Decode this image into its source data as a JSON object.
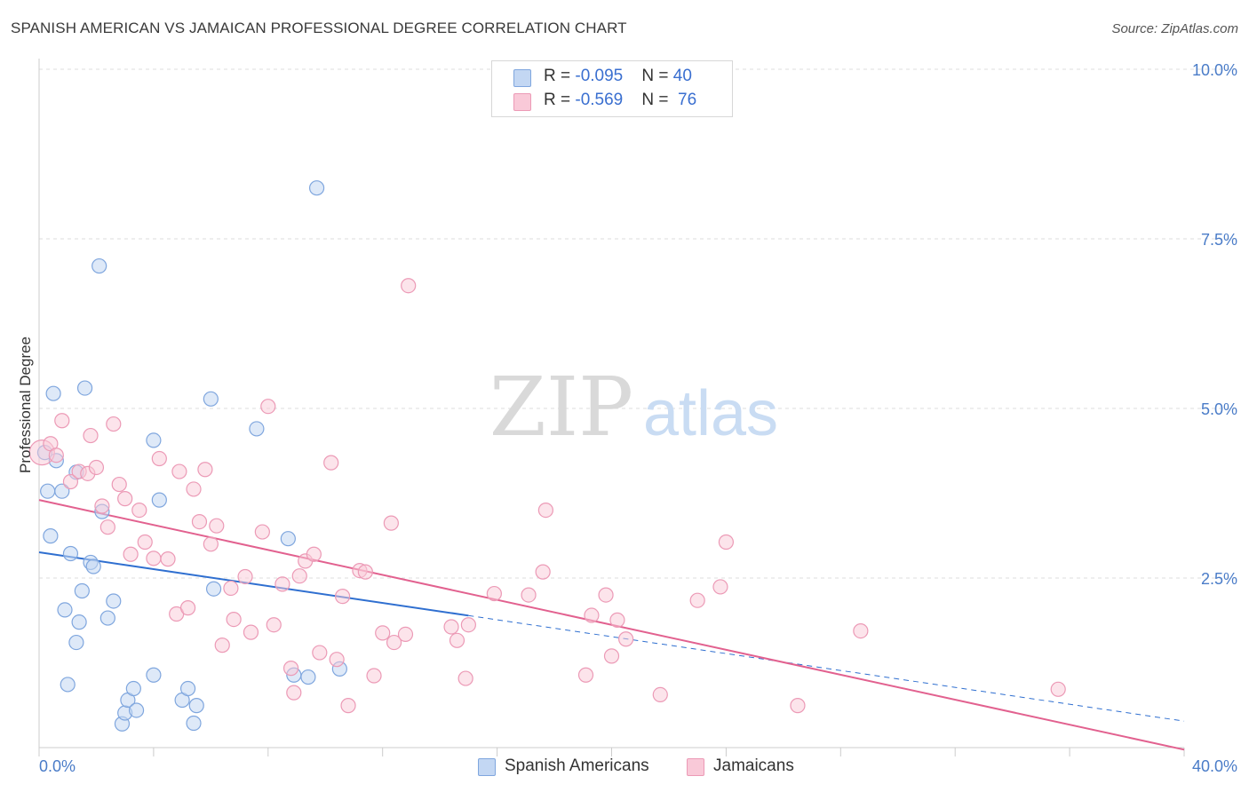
{
  "title": "SPANISH AMERICAN VS JAMAICAN PROFESSIONAL DEGREE CORRELATION CHART",
  "source": "Source: ZipAtlas.com",
  "watermark": {
    "zip": "ZIP",
    "atlas": "atlas"
  },
  "legend": {
    "rows": [
      {
        "r_label": "R = ",
        "r_value": "-0.095",
        "n_label": "N = ",
        "n_value": "40"
      },
      {
        "r_label": "R = ",
        "r_value": "-0.569",
        "n_label": "N = ",
        "n_value": "76"
      }
    ]
  },
  "bottom_legend": [
    "Spanish Americans",
    "Jamaicans"
  ],
  "colors": {
    "blue_fill": "#c3d7f3",
    "blue_stroke": "#7fa6de",
    "blue_line": "#2f6fd0",
    "pink_fill": "#f9c9d8",
    "pink_stroke": "#ec9ab6",
    "pink_line": "#e2618f",
    "grid": "#dddddd",
    "axis_text": "#4a7cc8"
  },
  "chart_data": {
    "type": "scatter",
    "title": "SPANISH AMERICAN VS JAMAICAN PROFESSIONAL DEGREE CORRELATION CHART",
    "xlabel": "",
    "ylabel": "Professional Degree",
    "xlim": [
      0,
      40
    ],
    "ylim": [
      0,
      10
    ],
    "x_tick_labels": [
      "0.0%",
      "40.0%"
    ],
    "y_ticks": [
      2.5,
      5.0,
      7.5,
      10.0
    ],
    "y_tick_labels": [
      "2.5%",
      "5.0%",
      "7.5%",
      "10.0%"
    ],
    "grid": true,
    "legend_position": "top-center",
    "series": [
      {
        "name": "Spanish Americans",
        "r": -0.095,
        "n": 40,
        "trend": {
          "x0": 0,
          "y0": 2.88,
          "x1": 40,
          "y1": 0.39,
          "solid_until_x": 15.0
        },
        "points": [
          [
            0.2,
            4.35
          ],
          [
            0.3,
            3.78
          ],
          [
            0.4,
            3.12
          ],
          [
            0.5,
            5.22
          ],
          [
            0.6,
            4.23
          ],
          [
            0.8,
            3.78
          ],
          [
            0.9,
            2.03
          ],
          [
            1.0,
            0.93
          ],
          [
            1.1,
            2.86
          ],
          [
            1.3,
            4.06
          ],
          [
            1.3,
            1.55
          ],
          [
            1.4,
            1.85
          ],
          [
            1.5,
            2.31
          ],
          [
            1.6,
            5.3
          ],
          [
            1.8,
            2.73
          ],
          [
            1.9,
            2.67
          ],
          [
            2.1,
            7.1
          ],
          [
            2.2,
            3.48
          ],
          [
            2.4,
            1.91
          ],
          [
            2.6,
            2.16
          ],
          [
            2.9,
            0.35
          ],
          [
            3.0,
            0.51
          ],
          [
            3.1,
            0.7
          ],
          [
            3.3,
            0.87
          ],
          [
            3.4,
            0.55
          ],
          [
            4.0,
            4.53
          ],
          [
            4.0,
            1.07
          ],
          [
            4.2,
            3.65
          ],
          [
            5.0,
            0.7
          ],
          [
            5.2,
            0.87
          ],
          [
            5.4,
            0.36
          ],
          [
            5.5,
            0.62
          ],
          [
            6.0,
            5.14
          ],
          [
            6.1,
            2.34
          ],
          [
            7.6,
            4.7
          ],
          [
            8.7,
            3.08
          ],
          [
            8.9,
            1.07
          ],
          [
            9.4,
            1.04
          ],
          [
            9.7,
            8.25
          ],
          [
            10.5,
            1.16
          ]
        ]
      },
      {
        "name": "Jamaicans",
        "r": -0.569,
        "n": 76,
        "trend": {
          "x0": 0,
          "y0": 3.65,
          "x1": 40,
          "y1": -0.03
        },
        "points": [
          [
            0.1,
            4.35
          ],
          [
            0.4,
            4.48
          ],
          [
            0.6,
            4.31
          ],
          [
            0.8,
            4.82
          ],
          [
            1.1,
            3.92
          ],
          [
            1.4,
            4.07
          ],
          [
            1.7,
            4.04
          ],
          [
            1.8,
            4.6
          ],
          [
            2.0,
            4.13
          ],
          [
            2.2,
            3.56
          ],
          [
            2.4,
            3.25
          ],
          [
            2.6,
            4.77
          ],
          [
            2.8,
            3.88
          ],
          [
            3.0,
            3.67
          ],
          [
            3.2,
            2.85
          ],
          [
            3.5,
            3.5
          ],
          [
            3.7,
            3.03
          ],
          [
            4.0,
            2.79
          ],
          [
            4.2,
            4.26
          ],
          [
            4.5,
            2.78
          ],
          [
            4.8,
            1.97
          ],
          [
            4.9,
            4.07
          ],
          [
            5.2,
            2.06
          ],
          [
            5.4,
            3.81
          ],
          [
            5.6,
            3.33
          ],
          [
            5.8,
            4.1
          ],
          [
            6.0,
            3.0
          ],
          [
            6.2,
            3.27
          ],
          [
            6.4,
            1.51
          ],
          [
            6.7,
            2.35
          ],
          [
            6.8,
            1.89
          ],
          [
            7.2,
            2.52
          ],
          [
            7.4,
            1.7
          ],
          [
            7.8,
            3.18
          ],
          [
            8.0,
            5.03
          ],
          [
            8.2,
            1.81
          ],
          [
            8.5,
            2.41
          ],
          [
            8.8,
            1.17
          ],
          [
            8.9,
            0.81
          ],
          [
            9.1,
            2.53
          ],
          [
            9.3,
            2.75
          ],
          [
            9.6,
            2.85
          ],
          [
            9.8,
            1.4
          ],
          [
            10.2,
            4.2
          ],
          [
            10.4,
            1.3
          ],
          [
            10.6,
            2.23
          ],
          [
            10.8,
            0.62
          ],
          [
            11.2,
            2.61
          ],
          [
            11.4,
            2.59
          ],
          [
            11.7,
            1.06
          ],
          [
            12.0,
            1.69
          ],
          [
            12.3,
            3.31
          ],
          [
            12.4,
            1.55
          ],
          [
            12.8,
            1.67
          ],
          [
            12.9,
            6.81
          ],
          [
            14.4,
            1.78
          ],
          [
            14.6,
            1.58
          ],
          [
            14.9,
            1.02
          ],
          [
            15.0,
            1.81
          ],
          [
            15.9,
            2.27
          ],
          [
            17.1,
            2.25
          ],
          [
            17.6,
            2.59
          ],
          [
            17.7,
            3.5
          ],
          [
            19.1,
            1.07
          ],
          [
            19.3,
            1.95
          ],
          [
            19.8,
            2.25
          ],
          [
            20.0,
            1.35
          ],
          [
            20.2,
            1.88
          ],
          [
            20.5,
            1.6
          ],
          [
            21.7,
            0.78
          ],
          [
            23.0,
            2.17
          ],
          [
            23.8,
            2.37
          ],
          [
            24.0,
            3.03
          ],
          [
            26.5,
            0.62
          ],
          [
            28.7,
            1.72
          ],
          [
            35.6,
            0.86
          ]
        ]
      }
    ]
  }
}
